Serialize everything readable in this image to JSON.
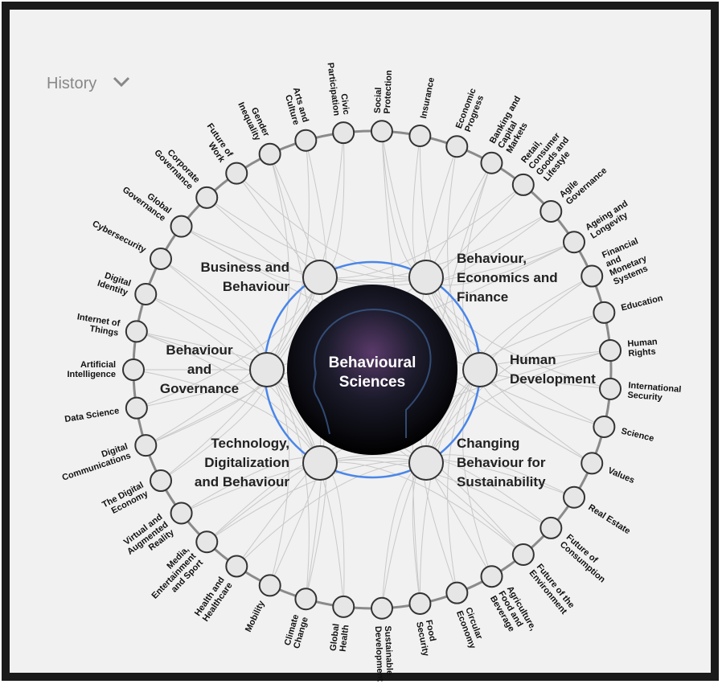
{
  "header": {
    "title": "History"
  },
  "center": {
    "label": [
      "Behavioural",
      "Sciences"
    ]
  },
  "themes": [
    {
      "label": [
        "Business and",
        "Behaviour"
      ]
    },
    {
      "label": [
        "Behaviour,",
        "Economics and",
        "Finance"
      ]
    },
    {
      "label": [
        "Behaviour",
        "and",
        "Governance"
      ]
    },
    {
      "label": [
        "Human",
        "Development"
      ]
    },
    {
      "label": [
        "Technology,",
        "Digitalization",
        "and Behaviour"
      ]
    },
    {
      "label": [
        "Changing",
        "Behaviour for",
        "Sustainability"
      ]
    }
  ],
  "topics": [
    {
      "label": [
        "Social",
        "Protection"
      ]
    },
    {
      "label": [
        "Insurance"
      ]
    },
    {
      "label": [
        "Economic",
        "Progress"
      ]
    },
    {
      "label": [
        "Banking and",
        "Capital",
        "Markets"
      ]
    },
    {
      "label": [
        "Retail,",
        "Consumer",
        "Goods and",
        "Lifestyle"
      ]
    },
    {
      "label": [
        "Agile",
        "Governance"
      ]
    },
    {
      "label": [
        "Ageing and",
        "Longevity"
      ]
    },
    {
      "label": [
        "Financial",
        "and",
        "Monetary",
        "Systems"
      ]
    },
    {
      "label": [
        "Education"
      ]
    },
    {
      "label": [
        "Human",
        "Rights"
      ]
    },
    {
      "label": [
        "International",
        "Security"
      ]
    },
    {
      "label": [
        "Science"
      ]
    },
    {
      "label": [
        "Values"
      ]
    },
    {
      "label": [
        "Real Estate"
      ]
    },
    {
      "label": [
        "Future of",
        "Consumption"
      ]
    },
    {
      "label": [
        "Future of the",
        "Environment"
      ]
    },
    {
      "label": [
        "Agriculture,",
        "Food and",
        "Beverage"
      ]
    },
    {
      "label": [
        "Circular",
        "Economy"
      ]
    },
    {
      "label": [
        "Food",
        "Security"
      ]
    },
    {
      "label": [
        "Sustainable",
        "Development"
      ]
    },
    {
      "label": [
        "Global",
        "Health"
      ]
    },
    {
      "label": [
        "Climate",
        "Change"
      ]
    },
    {
      "label": [
        "Mobility"
      ]
    },
    {
      "label": [
        "Health and",
        "Healthcare"
      ]
    },
    {
      "label": [
        "Media,",
        "Entertainment",
        "and Sport"
      ]
    },
    {
      "label": [
        "Virtual and",
        "Augmented",
        "Reality"
      ]
    },
    {
      "label": [
        "The Digital",
        "Economy"
      ]
    },
    {
      "label": [
        "Digital",
        "Communications"
      ]
    },
    {
      "label": [
        "Data Science"
      ]
    },
    {
      "label": [
        "Artificial",
        "Intelligence"
      ]
    },
    {
      "label": [
        "Internet of",
        "Things"
      ]
    },
    {
      "label": [
        "Digital",
        "Identity"
      ]
    },
    {
      "label": [
        "Cybersecurity"
      ]
    },
    {
      "label": [
        "Global",
        "Governance"
      ]
    },
    {
      "label": [
        "Corporate",
        "Governance"
      ]
    },
    {
      "label": [
        "Future of",
        "Work"
      ]
    },
    {
      "label": [
        "Gender",
        "Inequality"
      ]
    },
    {
      "label": [
        "Arts and",
        "Culture"
      ]
    },
    {
      "label": [
        "Civic",
        "Participation"
      ]
    }
  ]
}
